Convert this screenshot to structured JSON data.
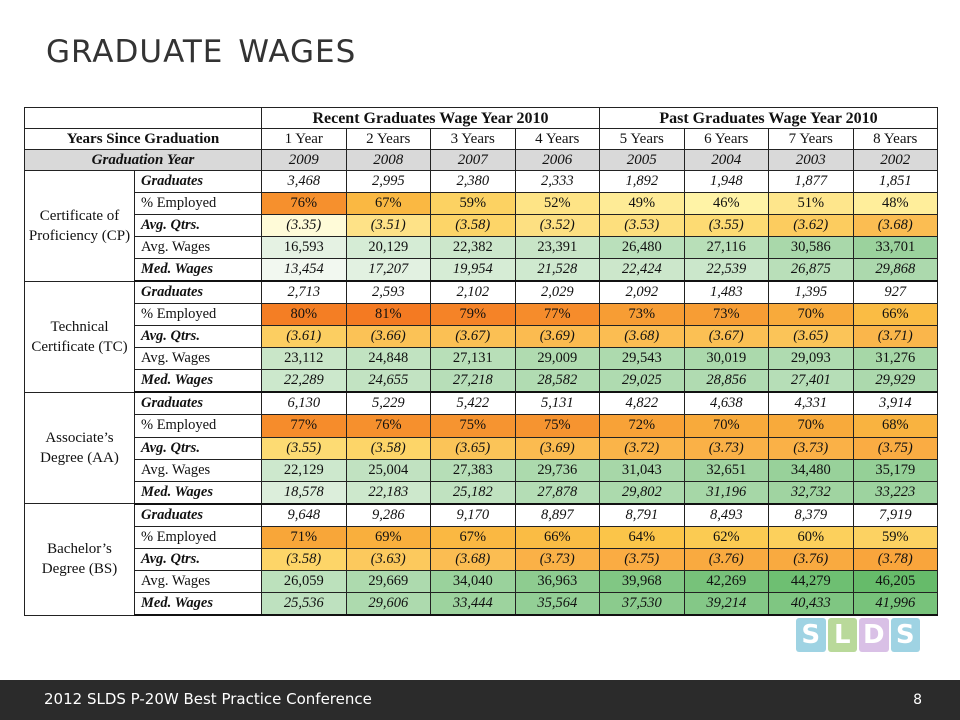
{
  "title": "Graduate Wages",
  "table": {
    "group_headers": [
      "Recent Graduates Wage Year 2010",
      "Past Graduates Wage Year 2010"
    ],
    "years_since_label": "Years Since Graduation",
    "years_since": [
      "1 Year",
      "2 Years",
      "3 Years",
      "4 Years",
      "5 Years",
      "6 Years",
      "7 Years",
      "8 Years"
    ],
    "grad_year_label": "Graduation Year",
    "grad_years": [
      "2009",
      "2008",
      "2007",
      "2006",
      "2005",
      "2004",
      "2003",
      "2002"
    ],
    "groups": [
      {
        "category": "Certificate of Proficiency (CP)",
        "rows": [
          {
            "metric": "Graduates",
            "values": [
              "3,468",
              "2,995",
              "2,380",
              "2,333",
              "1,892",
              "1,948",
              "1,877",
              "1,851"
            ]
          },
          {
            "metric": "% Employed",
            "values": [
              "76%",
              "67%",
              "59%",
              "52%",
              "49%",
              "46%",
              "51%",
              "48%"
            ]
          },
          {
            "metric": "Avg. Qtrs.",
            "values": [
              "(3.35)",
              "(3.51)",
              "(3.58)",
              "(3.52)",
              "(3.53)",
              "(3.55)",
              "(3.62)",
              "(3.68)"
            ]
          },
          {
            "metric": "Avg. Wages",
            "values": [
              "16,593",
              "20,129",
              "22,382",
              "23,391",
              "26,480",
              "27,116",
              "30,586",
              "33,701"
            ]
          },
          {
            "metric": "Med. Wages",
            "values": [
              "13,454",
              "17,207",
              "19,954",
              "21,528",
              "22,424",
              "22,539",
              "26,875",
              "29,868"
            ]
          }
        ]
      },
      {
        "category": "Technical Certificate (TC)",
        "rows": [
          {
            "metric": "Graduates",
            "values": [
              "2,713",
              "2,593",
              "2,102",
              "2,029",
              "2,092",
              "1,483",
              "1,395",
              "927"
            ]
          },
          {
            "metric": "% Employed",
            "values": [
              "80%",
              "81%",
              "79%",
              "77%",
              "73%",
              "73%",
              "70%",
              "66%"
            ]
          },
          {
            "metric": "Avg. Qtrs.",
            "values": [
              "(3.61)",
              "(3.66)",
              "(3.67)",
              "(3.69)",
              "(3.68)",
              "(3.67)",
              "(3.65)",
              "(3.71)"
            ]
          },
          {
            "metric": "Avg. Wages",
            "values": [
              "23,112",
              "24,848",
              "27,131",
              "29,009",
              "29,543",
              "30,019",
              "29,093",
              "31,276"
            ]
          },
          {
            "metric": "Med. Wages",
            "values": [
              "22,289",
              "24,655",
              "27,218",
              "28,582",
              "29,025",
              "28,856",
              "27,401",
              "29,929"
            ]
          }
        ]
      },
      {
        "category": "Associate’s Degree (AA)",
        "rows": [
          {
            "metric": "Graduates",
            "values": [
              "6,130",
              "5,229",
              "5,422",
              "5,131",
              "4,822",
              "4,638",
              "4,331",
              "3,914"
            ]
          },
          {
            "metric": "% Employed",
            "values": [
              "77%",
              "76%",
              "75%",
              "75%",
              "72%",
              "70%",
              "70%",
              "68%"
            ]
          },
          {
            "metric": "Avg. Qtrs.",
            "values": [
              "(3.55)",
              "(3.58)",
              "(3.65)",
              "(3.69)",
              "(3.72)",
              "(3.73)",
              "(3.73)",
              "(3.75)"
            ]
          },
          {
            "metric": "Avg. Wages",
            "values": [
              "22,129",
              "25,004",
              "27,383",
              "29,736",
              "31,043",
              "32,651",
              "34,480",
              "35,179"
            ]
          },
          {
            "metric": "Med. Wages",
            "values": [
              "18,578",
              "22,183",
              "25,182",
              "27,878",
              "29,802",
              "31,196",
              "32,732",
              "33,223"
            ]
          }
        ]
      },
      {
        "category": "Bachelor’s Degree (BS)",
        "rows": [
          {
            "metric": "Graduates",
            "values": [
              "9,648",
              "9,286",
              "9,170",
              "8,897",
              "8,791",
              "8,493",
              "8,379",
              "7,919"
            ]
          },
          {
            "metric": "% Employed",
            "values": [
              "71%",
              "69%",
              "67%",
              "66%",
              "64%",
              "62%",
              "60%",
              "59%"
            ]
          },
          {
            "metric": "Avg. Qtrs.",
            "values": [
              "(3.58)",
              "(3.63)",
              "(3.68)",
              "(3.73)",
              "(3.75)",
              "(3.76)",
              "(3.76)",
              "(3.78)"
            ]
          },
          {
            "metric": "Avg. Wages",
            "values": [
              "26,059",
              "29,669",
              "34,040",
              "36,963",
              "39,968",
              "42,269",
              "44,279",
              "46,205"
            ]
          },
          {
            "metric": "Med. Wages",
            "values": [
              "25,536",
              "29,606",
              "33,444",
              "35,564",
              "37,530",
              "39,214",
              "40,433",
              "41,996"
            ]
          }
        ]
      }
    ]
  },
  "logo_letters": [
    "S",
    "L",
    "D",
    "S"
  ],
  "logo_colors": [
    "#9fd3e3",
    "#b9d99a",
    "#d9c0e6",
    "#9fd3e3"
  ],
  "footer": {
    "conference": "2012 SLDS P-20W Best Practice Conference",
    "page_number": "8"
  }
}
